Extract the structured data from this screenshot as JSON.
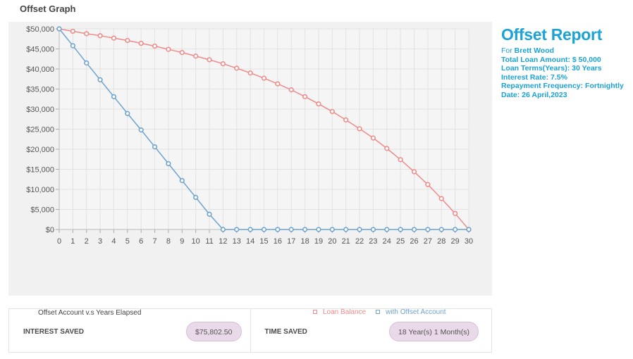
{
  "page_title": "Offset Graph",
  "chart_caption": "Offset Account v.s Years Elapsed",
  "report": {
    "title": "Offset Report",
    "for_label": "For",
    "client_name": "Brett Wood",
    "lines": [
      "Total Loan Amount: $ 50,000",
      "Loan Terms(Years): 30 Years",
      "Interest Rate: 7.5%",
      "Repayment Frequency: Fortnightly",
      "Date: 26 April,2023"
    ]
  },
  "summary": {
    "interest_saved_label": "INTEREST SAVED",
    "interest_saved_value": "$75,802.50",
    "time_saved_label": "TIME SAVED",
    "time_saved_value": "18 Year(s) 1 Month(s)"
  },
  "colors": {
    "loan_balance": "#f08a8a",
    "offset": "#6ea3cf",
    "report_accent": "#1aa3d4"
  },
  "chart_data": {
    "type": "line",
    "x": [
      0,
      1,
      2,
      3,
      4,
      5,
      6,
      7,
      8,
      9,
      10,
      11,
      12,
      13,
      14,
      15,
      16,
      17,
      18,
      19,
      20,
      21,
      22,
      23,
      24,
      25,
      26,
      27,
      28,
      29,
      30
    ],
    "ylim": [
      0,
      50000
    ],
    "yticks": [
      0,
      5000,
      10000,
      15000,
      20000,
      25000,
      30000,
      35000,
      40000,
      45000,
      50000
    ],
    "ytick_labels": [
      "$0",
      "$5,000",
      "$10,000",
      "$15,000",
      "$20,000",
      "$25,000",
      "$30,000",
      "$35,000",
      "$40,000",
      "$45,000",
      "$50,000"
    ],
    "grid": true,
    "legend_position": "bottom-right",
    "series": [
      {
        "name": "Loan Balance",
        "color": "#f08a8a",
        "values": [
          50000,
          49400,
          48800,
          48300,
          47700,
          47100,
          46400,
          45700,
          44900,
          44100,
          43200,
          42300,
          41300,
          40200,
          39000,
          37700,
          36300,
          34800,
          33100,
          31300,
          29400,
          27300,
          25100,
          22800,
          20200,
          17400,
          14400,
          11200,
          7700,
          4000,
          0
        ]
      },
      {
        "name": "with Offset Account",
        "color": "#6ea3cf",
        "values": [
          50000,
          45800,
          41500,
          37300,
          33100,
          28900,
          24800,
          20600,
          16400,
          12200,
          8000,
          3800,
          0,
          0,
          0,
          0,
          0,
          0,
          0,
          0,
          0,
          0,
          0,
          0,
          0,
          0,
          0,
          0,
          0,
          0,
          0
        ]
      }
    ]
  }
}
